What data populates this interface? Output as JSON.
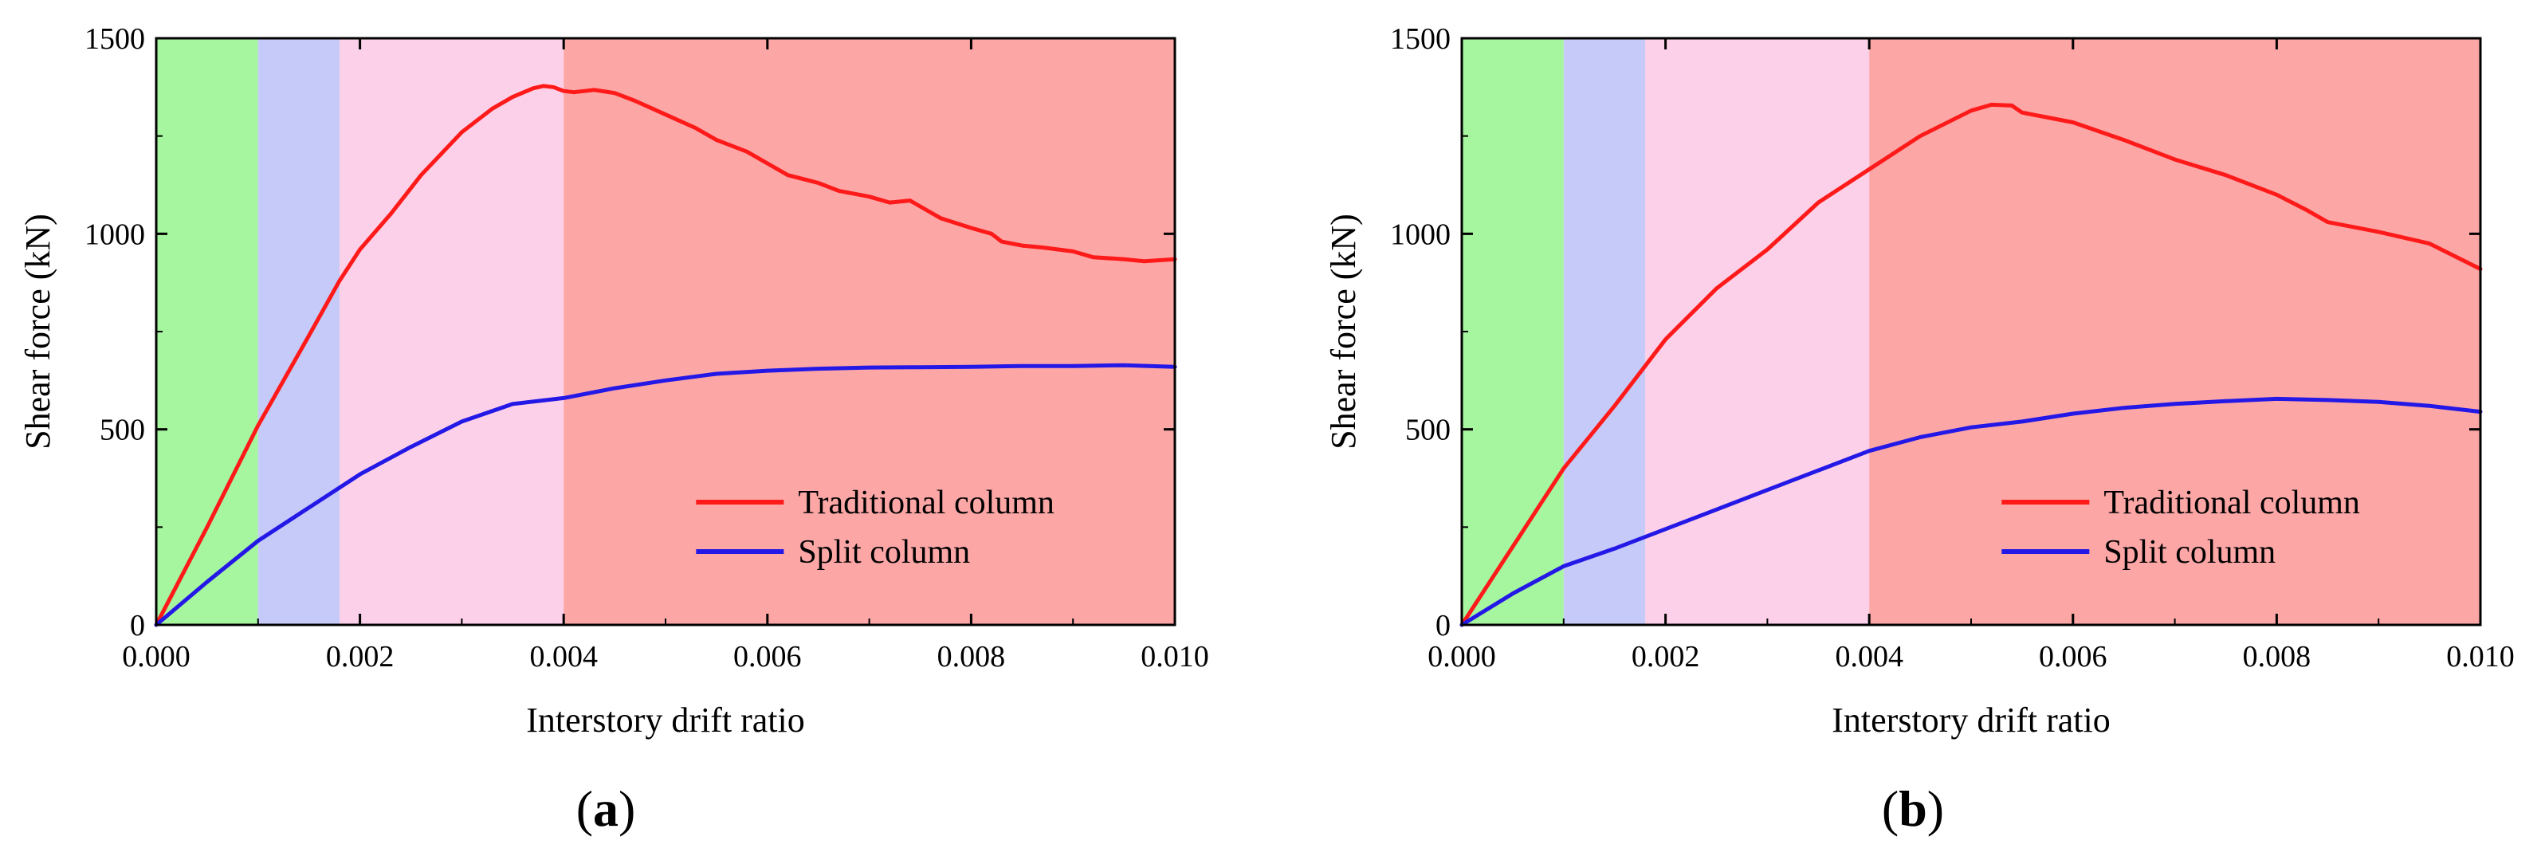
{
  "colors": {
    "zone_elastic": "#a6f59f",
    "zone_yield": "#c6caf9",
    "zone_peak": "#fbd0e8",
    "zone_softening": "#fca6a6",
    "traditional": "#ff1a1a",
    "split": "#2418e6",
    "axis": "#000000"
  },
  "chart_data": [
    {
      "type": "line",
      "panel": "a",
      "caption_open": "(",
      "caption_letter": "a",
      "caption_close": ")",
      "xlabel": "Interstory drift ratio",
      "ylabel": "Shear force (kN)",
      "xlim": [
        0,
        0.01
      ],
      "ylim": [
        0,
        1500
      ],
      "xticks": [
        0,
        0.002,
        0.004,
        0.006,
        0.008,
        0.01
      ],
      "xtick_labels": [
        "0.000",
        "0.002",
        "0.004",
        "0.006",
        "0.008",
        "0.010"
      ],
      "yticks": [
        0,
        500,
        1000,
        1500
      ],
      "ytick_labels": [
        "0",
        "500",
        "1000",
        "1500"
      ],
      "zones": [
        {
          "from": 0,
          "to": 0.001,
          "color": "zone_elastic"
        },
        {
          "from": 0.001,
          "to": 0.0018,
          "color": "zone_yield"
        },
        {
          "from": 0.0018,
          "to": 0.004,
          "color": "zone_peak"
        },
        {
          "from": 0.004,
          "to": 0.01,
          "color": "zone_softening"
        }
      ],
      "legend": {
        "placement": "lower-right",
        "entries": [
          "Traditional column",
          "Split column"
        ]
      },
      "series": [
        {
          "name": "Traditional column",
          "color": "traditional",
          "x": [
            0,
            0.0005,
            0.001,
            0.0015,
            0.0018,
            0.002,
            0.0023,
            0.0026,
            0.003,
            0.0033,
            0.0035,
            0.0037,
            0.0038,
            0.0039,
            0.004,
            0.0041,
            0.0043,
            0.0045,
            0.0047,
            0.005,
            0.0053,
            0.0055,
            0.0058,
            0.006,
            0.0062,
            0.0065,
            0.0067,
            0.007,
            0.0072,
            0.0074,
            0.0075,
            0.0077,
            0.008,
            0.0082,
            0.0083,
            0.0085,
            0.0087,
            0.009,
            0.0092,
            0.0095,
            0.0097,
            0.01
          ],
          "y": [
            0,
            250,
            510,
            740,
            880,
            960,
            1050,
            1150,
            1260,
            1320,
            1350,
            1372,
            1378,
            1375,
            1365,
            1362,
            1368,
            1360,
            1340,
            1305,
            1270,
            1240,
            1210,
            1180,
            1150,
            1130,
            1110,
            1095,
            1080,
            1085,
            1070,
            1040,
            1015,
            1000,
            980,
            970,
            965,
            955,
            940,
            935,
            930,
            935
          ]
        },
        {
          "name": "Split column",
          "color": "split",
          "x": [
            0,
            0.0005,
            0.001,
            0.0015,
            0.002,
            0.0025,
            0.003,
            0.0035,
            0.004,
            0.0045,
            0.005,
            0.0055,
            0.006,
            0.0065,
            0.007,
            0.0075,
            0.008,
            0.0085,
            0.009,
            0.0095,
            0.01
          ],
          "y": [
            0,
            110,
            215,
            300,
            385,
            455,
            520,
            565,
            580,
            605,
            625,
            642,
            650,
            655,
            658,
            659,
            660,
            662,
            662,
            664,
            660
          ]
        }
      ]
    },
    {
      "type": "line",
      "panel": "b",
      "caption_open": "(",
      "caption_letter": "b",
      "caption_close": ")",
      "xlabel": "Interstory drift ratio",
      "ylabel": "Shear force (kN)",
      "xlim": [
        0,
        0.01
      ],
      "ylim": [
        0,
        1500
      ],
      "xticks": [
        0,
        0.002,
        0.004,
        0.006,
        0.008,
        0.01
      ],
      "xtick_labels": [
        "0.000",
        "0.002",
        "0.004",
        "0.006",
        "0.008",
        "0.010"
      ],
      "yticks": [
        0,
        500,
        1000,
        1500
      ],
      "ytick_labels": [
        "0",
        "500",
        "1000",
        "1500"
      ],
      "zones": [
        {
          "from": 0,
          "to": 0.001,
          "color": "zone_elastic"
        },
        {
          "from": 0.001,
          "to": 0.0018,
          "color": "zone_yield"
        },
        {
          "from": 0.0018,
          "to": 0.004,
          "color": "zone_peak"
        },
        {
          "from": 0.004,
          "to": 0.01,
          "color": "zone_softening"
        }
      ],
      "legend": {
        "placement": "lower-right",
        "entries": [
          "Traditional column",
          "Split column"
        ]
      },
      "series": [
        {
          "name": "Traditional column",
          "color": "traditional",
          "x": [
            0,
            0.0005,
            0.001,
            0.0015,
            0.002,
            0.0025,
            0.003,
            0.0035,
            0.004,
            0.0045,
            0.005,
            0.0052,
            0.0054,
            0.0055,
            0.006,
            0.0065,
            0.007,
            0.0075,
            0.008,
            0.0083,
            0.0085,
            0.009,
            0.0095,
            0.01
          ],
          "y": [
            0,
            200,
            400,
            560,
            730,
            860,
            960,
            1080,
            1165,
            1250,
            1315,
            1330,
            1328,
            1310,
            1285,
            1240,
            1190,
            1150,
            1100,
            1060,
            1030,
            1005,
            975,
            910
          ]
        },
        {
          "name": "Split column",
          "color": "split",
          "x": [
            0,
            0.0005,
            0.001,
            0.0015,
            0.002,
            0.0025,
            0.003,
            0.0035,
            0.004,
            0.0045,
            0.005,
            0.0055,
            0.006,
            0.0065,
            0.007,
            0.0075,
            0.008,
            0.0085,
            0.009,
            0.0095,
            0.01
          ],
          "y": [
            0,
            80,
            150,
            195,
            245,
            295,
            345,
            395,
            445,
            480,
            505,
            520,
            540,
            555,
            565,
            572,
            578,
            575,
            570,
            560,
            545
          ]
        }
      ]
    }
  ]
}
